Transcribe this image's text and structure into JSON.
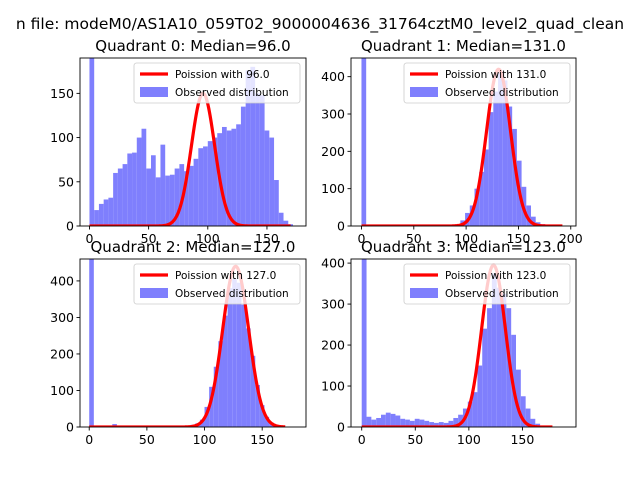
{
  "figure_title": "n file: modeM0/AS1A10_059T02_9000004636_31764cztM0_level2_quad_clean",
  "chart_data": [
    {
      "type": "bar",
      "title": "Quadrant 0: Median=96.0",
      "xlim": [
        -8,
        183
      ],
      "ylim": [
        0,
        190
      ],
      "xticks": [
        0,
        50,
        100,
        150
      ],
      "yticks": [
        0,
        50,
        100,
        150
      ],
      "bin_width": 4,
      "bins": [
        [
          0,
          190
        ],
        [
          4,
          18
        ],
        [
          8,
          25
        ],
        [
          12,
          30
        ],
        [
          16,
          32
        ],
        [
          20,
          60
        ],
        [
          24,
          65
        ],
        [
          28,
          70
        ],
        [
          32,
          82
        ],
        [
          36,
          83
        ],
        [
          40,
          100
        ],
        [
          44,
          110
        ],
        [
          48,
          65
        ],
        [
          52,
          80
        ],
        [
          56,
          55
        ],
        [
          60,
          92
        ],
        [
          64,
          57
        ],
        [
          68,
          58
        ],
        [
          72,
          65
        ],
        [
          76,
          70
        ],
        [
          80,
          62
        ],
        [
          84,
          68
        ],
        [
          88,
          76
        ],
        [
          92,
          88
        ],
        [
          96,
          90
        ],
        [
          100,
          96
        ],
        [
          104,
          100
        ],
        [
          108,
          105
        ],
        [
          112,
          112
        ],
        [
          116,
          108
        ],
        [
          120,
          110
        ],
        [
          124,
          115
        ],
        [
          128,
          135
        ],
        [
          132,
          176
        ],
        [
          136,
          180
        ],
        [
          140,
          150
        ],
        [
          144,
          148
        ],
        [
          148,
          108
        ],
        [
          152,
          100
        ],
        [
          156,
          52
        ],
        [
          160,
          15
        ],
        [
          164,
          6
        ],
        [
          168,
          2
        ]
      ],
      "poisson_mean": 96.0,
      "poisson_peak": 150,
      "curve_range": [
        0,
        170
      ],
      "legend": [
        "Poission with 96.0",
        "Observed distribution"
      ]
    },
    {
      "type": "bar",
      "title": "Quadrant 1: Median=131.0",
      "xlim": [
        -10,
        205
      ],
      "ylim": [
        0,
        450
      ],
      "xticks": [
        0,
        50,
        100,
        150,
        200
      ],
      "yticks": [
        0,
        100,
        200,
        300,
        400
      ],
      "bin_width": 4.5,
      "bins": [
        [
          0,
          450
        ],
        [
          4.5,
          3
        ],
        [
          9,
          2
        ],
        [
          13.5,
          2
        ],
        [
          18,
          2
        ],
        [
          22.5,
          1
        ],
        [
          27,
          2
        ],
        [
          31.5,
          2
        ],
        [
          36,
          2
        ],
        [
          40.5,
          1
        ],
        [
          45,
          1
        ],
        [
          49.5,
          2
        ],
        [
          54,
          2
        ],
        [
          58.5,
          1
        ],
        [
          63,
          1
        ],
        [
          67.5,
          2
        ],
        [
          72,
          2
        ],
        [
          76.5,
          2
        ],
        [
          81,
          2
        ],
        [
          85.5,
          3
        ],
        [
          90,
          5
        ],
        [
          94.5,
          15
        ],
        [
          99,
          35
        ],
        [
          103.5,
          55
        ],
        [
          108,
          100
        ],
        [
          112.5,
          145
        ],
        [
          117,
          205
        ],
        [
          121.5,
          305
        ],
        [
          126,
          360
        ],
        [
          130.5,
          410
        ],
        [
          135,
          390
        ],
        [
          139.5,
          320
        ],
        [
          144,
          260
        ],
        [
          148.5,
          175
        ],
        [
          153,
          105
        ],
        [
          157.5,
          55
        ],
        [
          162,
          25
        ],
        [
          166.5,
          10
        ],
        [
          171,
          5
        ],
        [
          175.5,
          2
        ],
        [
          180,
          1
        ]
      ],
      "poisson_mean": 131.0,
      "poisson_peak": 420,
      "curve_range": [
        0,
        192
      ],
      "legend": [
        "Poission with 131.0",
        "Observed distribution"
      ]
    },
    {
      "type": "bar",
      "title": "Quadrant 2: Median=127.0",
      "xlim": [
        -8,
        188
      ],
      "ylim": [
        0,
        460
      ],
      "xticks": [
        0,
        50,
        100,
        150
      ],
      "yticks": [
        0,
        100,
        200,
        300,
        400
      ],
      "bin_width": 4,
      "bins": [
        [
          0,
          460
        ],
        [
          4,
          3
        ],
        [
          8,
          2
        ],
        [
          12,
          2
        ],
        [
          16,
          2
        ],
        [
          20,
          8
        ],
        [
          24,
          2
        ],
        [
          28,
          2
        ],
        [
          32,
          2
        ],
        [
          36,
          1
        ],
        [
          40,
          2
        ],
        [
          44,
          1
        ],
        [
          48,
          2
        ],
        [
          52,
          2
        ],
        [
          56,
          1
        ],
        [
          60,
          2
        ],
        [
          64,
          1
        ],
        [
          68,
          2
        ],
        [
          72,
          2
        ],
        [
          76,
          1
        ],
        [
          80,
          2
        ],
        [
          84,
          3
        ],
        [
          88,
          6
        ],
        [
          92,
          10
        ],
        [
          96,
          20
        ],
        [
          100,
          55
        ],
        [
          104,
          110
        ],
        [
          108,
          165
        ],
        [
          112,
          235
        ],
        [
          116,
          305
        ],
        [
          120,
          380
        ],
        [
          124,
          405
        ],
        [
          128,
          395
        ],
        [
          132,
          335
        ],
        [
          136,
          270
        ],
        [
          140,
          195
        ],
        [
          144,
          115
        ],
        [
          148,
          60
        ],
        [
          152,
          28
        ],
        [
          156,
          12
        ],
        [
          160,
          4
        ],
        [
          164,
          2
        ]
      ],
      "poisson_mean": 127.0,
      "poisson_peak": 440,
      "curve_range": [
        0,
        170
      ],
      "legend": [
        "Poission with 127.0",
        "Observed distribution"
      ]
    },
    {
      "type": "bar",
      "title": "Quadrant 3: Median=123.0",
      "xlim": [
        -10,
        200
      ],
      "ylim": [
        0,
        410
      ],
      "xticks": [
        0,
        50,
        100,
        150
      ],
      "yticks": [
        0,
        100,
        200,
        300,
        400
      ],
      "bin_width": 4.5,
      "bins": [
        [
          0,
          410
        ],
        [
          4.5,
          25
        ],
        [
          9,
          18
        ],
        [
          13.5,
          22
        ],
        [
          18,
          30
        ],
        [
          22.5,
          35
        ],
        [
          27,
          32
        ],
        [
          31.5,
          28
        ],
        [
          36,
          20
        ],
        [
          40.5,
          18
        ],
        [
          45,
          15
        ],
        [
          49.5,
          20
        ],
        [
          54,
          18
        ],
        [
          58.5,
          15
        ],
        [
          63,
          12
        ],
        [
          67.5,
          10
        ],
        [
          72,
          12
        ],
        [
          76.5,
          10
        ],
        [
          81,
          15
        ],
        [
          85.5,
          22
        ],
        [
          90,
          30
        ],
        [
          94.5,
          45
        ],
        [
          99,
          62
        ],
        [
          103.5,
          85
        ],
        [
          108,
          150
        ],
        [
          112.5,
          240
        ],
        [
          117,
          290
        ],
        [
          121.5,
          375
        ],
        [
          126,
          340
        ],
        [
          130.5,
          325
        ],
        [
          135,
          290
        ],
        [
          139.5,
          225
        ],
        [
          144,
          140
        ],
        [
          148.5,
          75
        ],
        [
          153,
          45
        ],
        [
          157.5,
          20
        ],
        [
          162,
          8
        ],
        [
          166.5,
          3
        ],
        [
          171,
          1
        ]
      ],
      "poisson_mean": 123.0,
      "poisson_peak": 395,
      "curve_range": [
        0,
        178
      ],
      "legend": [
        "Poission with 123.0",
        "Observed distribution"
      ]
    }
  ]
}
